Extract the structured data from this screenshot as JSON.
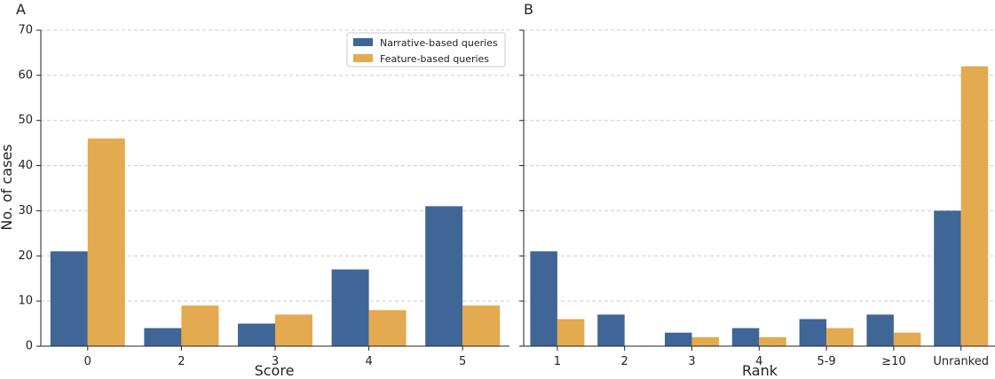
{
  "colors": {
    "narrative": "#3f6696",
    "feature": "#e4aa50",
    "grid": "#cccccc",
    "axis": "#222222"
  },
  "legend": [
    "Narrative-based queries",
    "Feature-based queries"
  ],
  "ylabel": "No. of cases",
  "chart_data": [
    {
      "panel": "A",
      "type": "bar",
      "xlabel": "Score",
      "ylabel": "No. of cases",
      "categories": [
        "0",
        "2",
        "3",
        "4",
        "5"
      ],
      "series": [
        {
          "name": "Narrative-based queries",
          "values": [
            21,
            4,
            5,
            17,
            31
          ]
        },
        {
          "name": "Feature-based queries",
          "values": [
            46,
            9,
            7,
            8,
            9
          ]
        }
      ],
      "ylim": [
        0,
        70
      ],
      "yticks": [
        0,
        10,
        20,
        30,
        40,
        50,
        60,
        70
      ],
      "grid": "horizontal dashed",
      "legend_position": "top-right"
    },
    {
      "panel": "B",
      "type": "bar",
      "xlabel": "Rank",
      "ylabel": "",
      "categories": [
        "1",
        "2",
        "3",
        "4",
        "5-9",
        "≥10",
        "Unranked"
      ],
      "series": [
        {
          "name": "Narrative-based queries",
          "values": [
            21,
            7,
            3,
            4,
            6,
            7,
            30
          ]
        },
        {
          "name": "Feature-based queries",
          "values": [
            6,
            0,
            2,
            2,
            4,
            3,
            62
          ]
        }
      ],
      "ylim": [
        0,
        70
      ],
      "grid": "horizontal dashed"
    }
  ]
}
